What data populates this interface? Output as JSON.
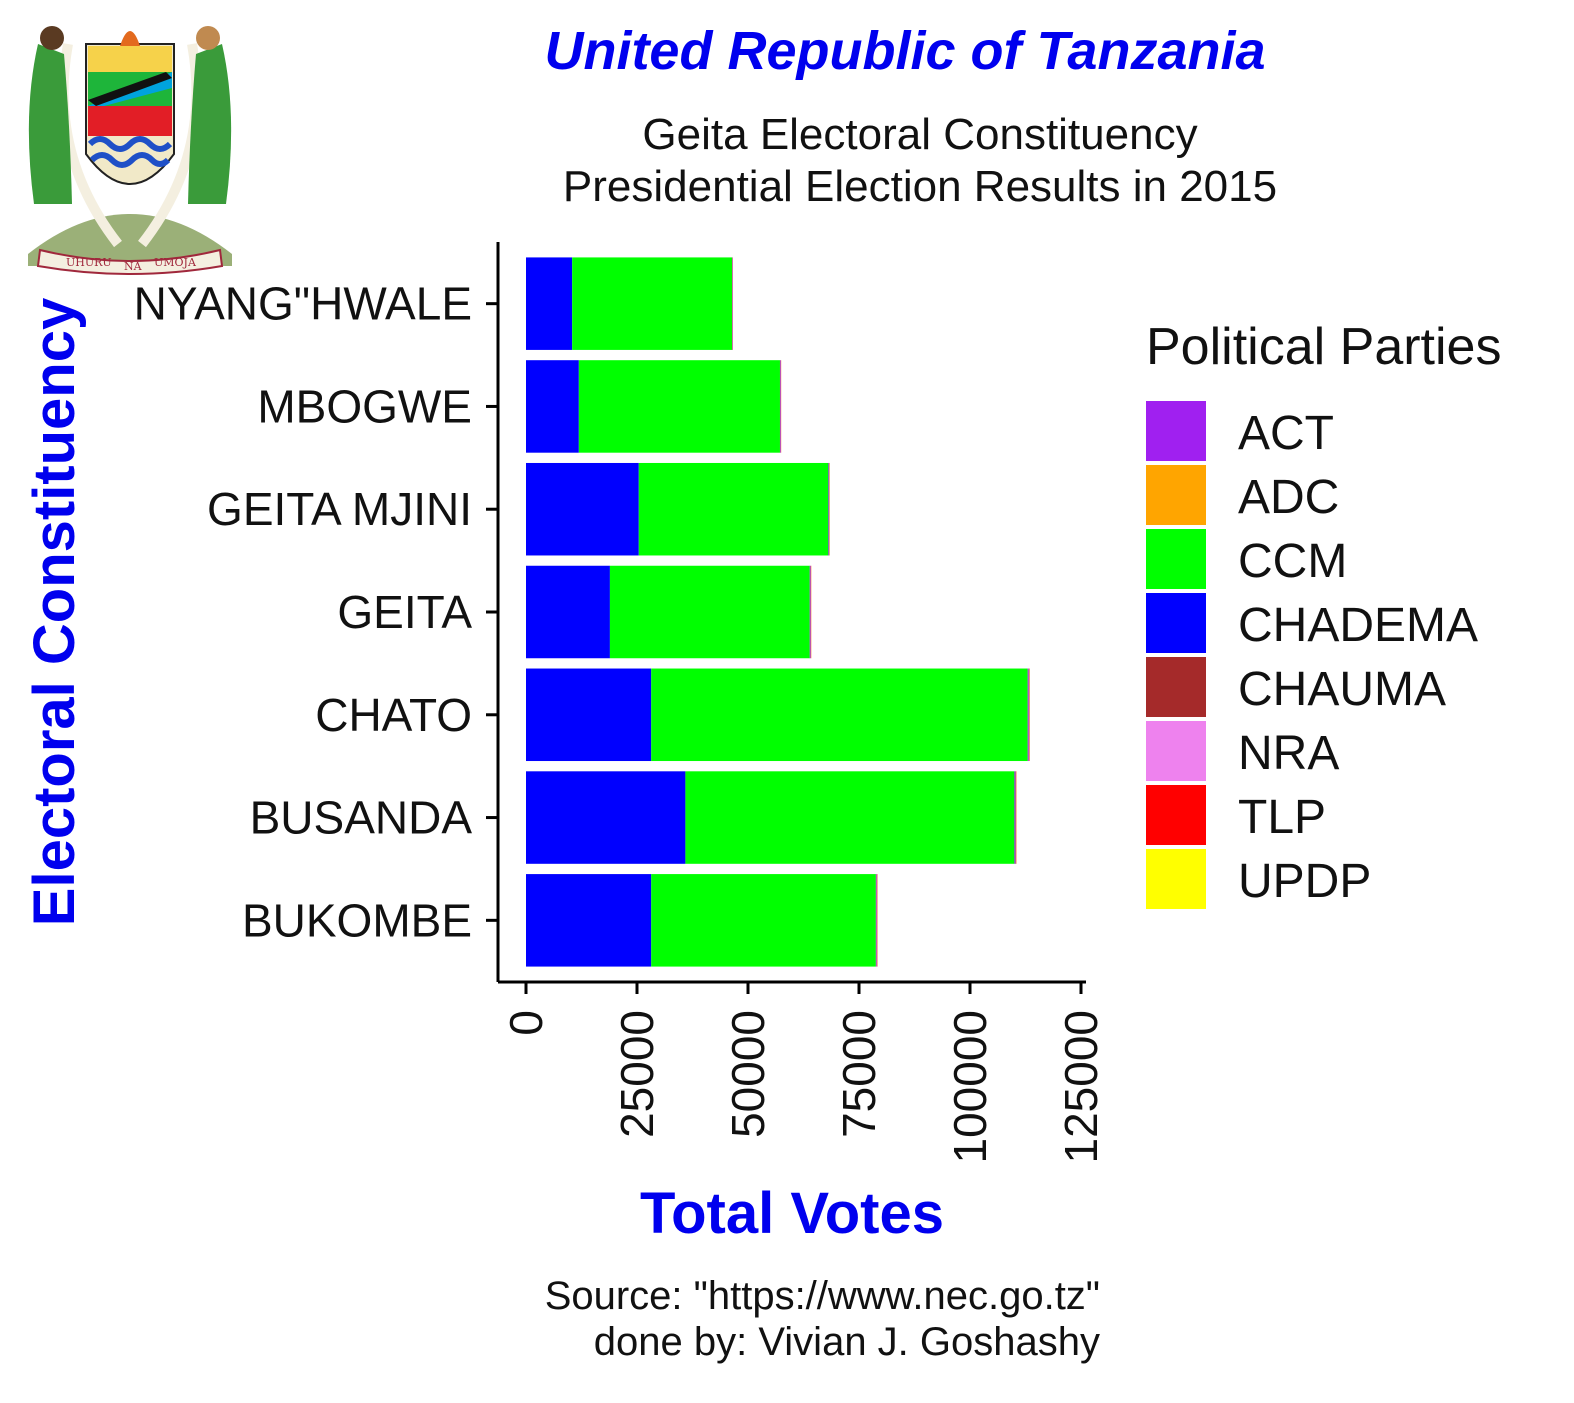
{
  "title": "United Republic of Tanzania",
  "subtitle_lines": [
    "Geita Electoral Constituency",
    "Presidential Election Results in 2015"
  ],
  "caption_lines": [
    "Source: \"https://www.nec.go.tz\"",
    "done by: Vivian J. Goshashy"
  ],
  "emblem": {
    "icon": "tanzania-coat-of-arms-icon",
    "motto": [
      "UHURU",
      "NA",
      "UMOJA"
    ]
  },
  "colors": {
    "ACT": "#a020f0",
    "ADC": "#ffa500",
    "CCM": "#00ff00",
    "CHADEMA": "#0000ff",
    "CHAUMA": "#a52a2a",
    "NRA": "#ee82ee",
    "TLP": "#ff0000",
    "UPDP": "#ffff00",
    "title": "#0000ee",
    "axis_title": "#0000ee"
  },
  "chart_data": {
    "type": "bar",
    "orientation": "horizontal",
    "stacked": true,
    "title": "United Republic of Tanzania",
    "xlabel": "Total Votes",
    "ylabel": "Electoral Constituency",
    "xlim": [
      0,
      125000
    ],
    "xticks": [
      0,
      25000,
      50000,
      75000,
      100000,
      125000
    ],
    "xtick_labels": [
      "0",
      "25000",
      "50000",
      "75000",
      "100000",
      "125000"
    ],
    "categories": [
      "BUKOMBE",
      "BUSANDA",
      "CHATO",
      "GEITA",
      "GEITA MJINI",
      "MBOGWE",
      "NYANG\"HWALE"
    ],
    "legend_title": "Political Parties",
    "legend_position": "right",
    "grid": false,
    "series": [
      {
        "name": "CHADEMA",
        "values": [
          28200,
          35900,
          28200,
          18900,
          25400,
          11900,
          10400
        ]
      },
      {
        "name": "CCM",
        "values": [
          50600,
          74100,
          84800,
          45000,
          42700,
          45300,
          36000
        ]
      },
      {
        "name": "ACT",
        "values": [
          200,
          250,
          250,
          200,
          150,
          150,
          100
        ]
      },
      {
        "name": "ADC",
        "values": [
          50,
          60,
          60,
          50,
          40,
          40,
          30
        ]
      },
      {
        "name": "CHAUMA",
        "values": [
          60,
          70,
          70,
          50,
          50,
          40,
          30
        ]
      },
      {
        "name": "NRA",
        "values": [
          30,
          40,
          40,
          30,
          30,
          20,
          20
        ]
      },
      {
        "name": "TLP",
        "values": [
          30,
          40,
          40,
          30,
          30,
          20,
          20
        ]
      },
      {
        "name": "UPDP",
        "values": [
          30,
          40,
          40,
          30,
          30,
          20,
          20
        ]
      }
    ],
    "legend_order": [
      "ACT",
      "ADC",
      "CCM",
      "CHADEMA",
      "CHAUMA",
      "NRA",
      "TLP",
      "UPDP"
    ]
  }
}
